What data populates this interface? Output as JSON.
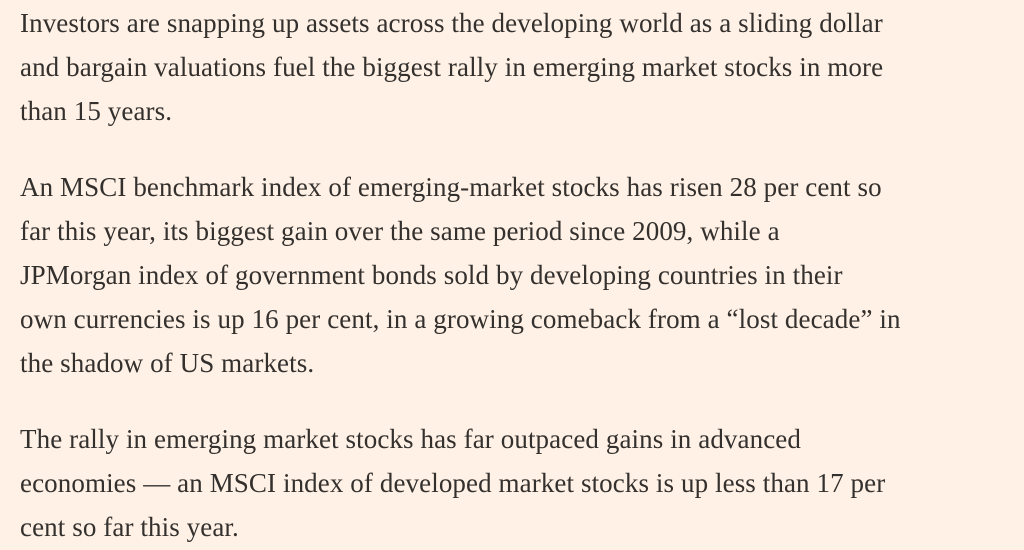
{
  "page": {
    "background_color": "#fff1e5",
    "text_color": "#33302e"
  },
  "article": {
    "paragraphs": [
      "Investors are snapping up assets across the developing world as a sliding dollar\nand bargain valuations fuel the biggest rally in emerging market stocks in more\nthan 15 years.",
      "An MSCI benchmark index of emerging-market stocks has risen 28 per cent so\nfar this year, its biggest gain over the same period since 2009, while a\nJPMorgan index of government bonds sold by developing countries in their\nown currencies is up 16 per cent, in a growing comeback from a “lost decade” in\nthe shadow of US markets.",
      "The rally in emerging market stocks has far outpaced gains in advanced\neconomies — an MSCI index of developed market stocks is up less than 17 per\ncent so far this year."
    ]
  }
}
